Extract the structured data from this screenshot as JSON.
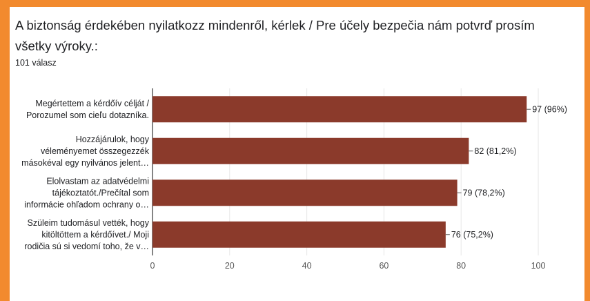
{
  "title": "A biztonság érdekében nyilatkozz mindenről, kérlek / Pre účely bezpečia nám potvrď prosím všetky výroky.:",
  "subtitle": "101 válasz",
  "colors": {
    "bar": "#8b3a2b",
    "accent": "#f28a2e"
  },
  "chart_data": {
    "type": "bar",
    "orientation": "horizontal",
    "categories": [
      [
        "Megértettem a kérdőív célját /",
        "Porozumel som cieľu dotazníka."
      ],
      [
        "Hozzájárulok, hogy",
        "véleményemet összegezzék",
        "másokéval egy nyilvános jelent…"
      ],
      [
        "Elolvastam az adatvédelmi",
        "tájékoztatót./Prečítal som",
        "informácie ohľadom ochrany o…"
      ],
      [
        "Szüleim tudomásul vették, hogy",
        "kitöltöttem a kérdőívet./ Moji",
        "rodičia sú si vedomí toho, že v…"
      ]
    ],
    "values": [
      97,
      82,
      79,
      76
    ],
    "labels": [
      "97 (96%)",
      "82 (81,2%)",
      "79 (78,2%)",
      "76 (75,2%)"
    ],
    "xlim": [
      0,
      100
    ],
    "xticks": [
      0,
      20,
      40,
      60,
      80,
      100
    ],
    "grid": true
  }
}
